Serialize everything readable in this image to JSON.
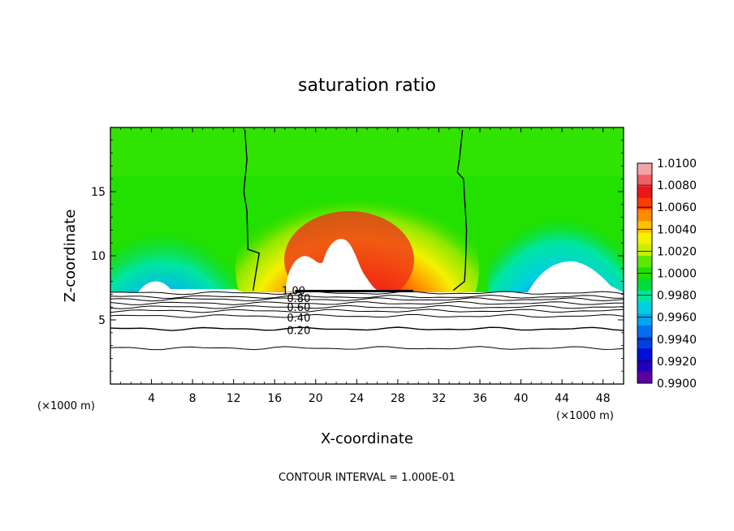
{
  "chart_data": {
    "type": "heatmap",
    "title": "saturation ratio",
    "xlabel": "X-coordinate",
    "ylabel": "Z-coordinate",
    "x_unit_label": "(×1000 m)",
    "x_unit_label_right": "(×1000 m)",
    "footer": "CONTOUR INTERVAL = 1.000E-01",
    "xlim": [
      0,
      50
    ],
    "ylim": [
      0,
      20
    ],
    "xticks": [
      4,
      8,
      12,
      16,
      20,
      24,
      28,
      32,
      36,
      40,
      44,
      48
    ],
    "yticks": [
      5,
      10,
      15
    ],
    "colorbar": {
      "levels": [
        "1.0100",
        "1.0080",
        "1.0060",
        "1.0040",
        "1.0020",
        "1.0000",
        "0.9980",
        "0.9960",
        "0.9940",
        "0.9920",
        "0.9900"
      ],
      "colors": [
        "#f4a3a8",
        "#f05e66",
        "#e81818",
        "#ff3a00",
        "#ff8c00",
        "#ffc400",
        "#f5f000",
        "#c8ef00",
        "#5ce800",
        "#1fe000",
        "#00dc3c",
        "#00e6a0",
        "#00cfe0",
        "#00a8f0",
        "#0070f0",
        "#0040e0",
        "#0010d8",
        "#2000b8",
        "#5a00a0"
      ]
    },
    "contour_labels": [
      {
        "text": "1.00",
        "x": 16.7,
        "z": 7.3
      },
      {
        "text": "0.80",
        "x": 17.2,
        "z": 6.7
      },
      {
        "text": "0.60",
        "x": 17.2,
        "z": 6.0
      },
      {
        "text": "0.40",
        "x": 17.2,
        "z": 5.2
      },
      {
        "text": "0.20",
        "x": 17.2,
        "z": 4.2
      }
    ],
    "contour_levels_z": [
      7.1,
      6.8,
      6.6,
      6.3,
      6.0,
      5.7,
      5.3,
      4.3,
      2.8
    ],
    "boundary_1_contour": [
      [
        13.1,
        19.8
      ],
      [
        13.3,
        17.5
      ],
      [
        13.0,
        15.0
      ],
      [
        13.3,
        13.5
      ],
      [
        13.4,
        10.5
      ],
      [
        14.5,
        10.2
      ],
      [
        14.2,
        8.8
      ],
      [
        13.9,
        7.3
      ]
    ],
    "boundary_2_contour": [
      [
        34.3,
        19.8
      ],
      [
        34.0,
        17.5
      ],
      [
        33.8,
        16.5
      ],
      [
        34.4,
        16.0
      ],
      [
        34.7,
        12.0
      ],
      [
        34.6,
        9.2
      ],
      [
        34.5,
        8.0
      ],
      [
        33.4,
        7.3
      ]
    ]
  }
}
